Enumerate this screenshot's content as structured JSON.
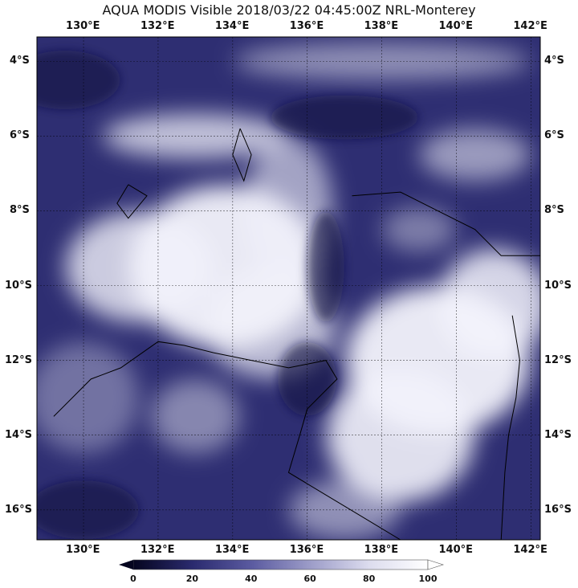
{
  "title": "AQUA MODIS Visible 2018/03/22 04:45:00Z NRL-Monterey",
  "map": {
    "lon_range": [
      128.75,
      142.25
    ],
    "lat_range": [
      -16.8,
      -3.35
    ],
    "lon_ticks": [
      130,
      132,
      134,
      136,
      138,
      140,
      142
    ],
    "lon_labels": [
      "130°E",
      "132°E",
      "134°E",
      "136°E",
      "138°E",
      "140°E",
      "142°E"
    ],
    "lat_ticks": [
      -4,
      -6,
      -8,
      -10,
      -12,
      -14,
      -16
    ],
    "lat_labels": [
      "4°S",
      "6°S",
      "8°S",
      "10°S",
      "12°S",
      "14°S",
      "16°S"
    ],
    "gridlines": true,
    "imagery": "visible satellite cloud imagery"
  },
  "colorbar": {
    "min": 0,
    "max": 100,
    "tick_labels": [
      "0",
      "20",
      "40",
      "60",
      "80",
      "100"
    ],
    "colors": [
      "#05051f",
      "#2a2a6e",
      "#5a5aa0",
      "#9c9cc8",
      "#dcdcee",
      "#ffffff"
    ],
    "extend": "both"
  }
}
